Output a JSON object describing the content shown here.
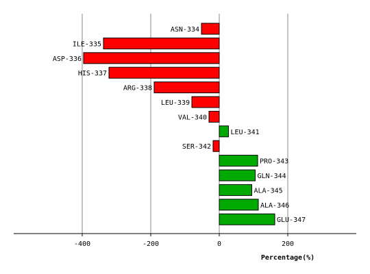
{
  "chart_data": {
    "type": "bar",
    "orientation": "horizontal",
    "categories": [
      "ASN-334",
      "ILE-335",
      "ASP-336",
      "HIS-337",
      "ARG-338",
      "LEU-339",
      "VAL-340",
      "LEU-341",
      "SER-342",
      "PRO-343",
      "GLN-344",
      "ALA-345",
      "ALA-346",
      "GLU-347"
    ],
    "values": [
      -52,
      -338,
      -396,
      -322,
      -190,
      -80,
      -30,
      27,
      -18,
      112,
      105,
      95,
      114,
      162
    ],
    "xlabel": "Percentage(%)",
    "xlim": [
      -600,
      400
    ],
    "xticks": [
      -400,
      -200,
      0,
      200
    ],
    "grid": true,
    "colors": {
      "negative": "#ff0000",
      "positive": "#00aa00",
      "grid": "#888888"
    }
  }
}
